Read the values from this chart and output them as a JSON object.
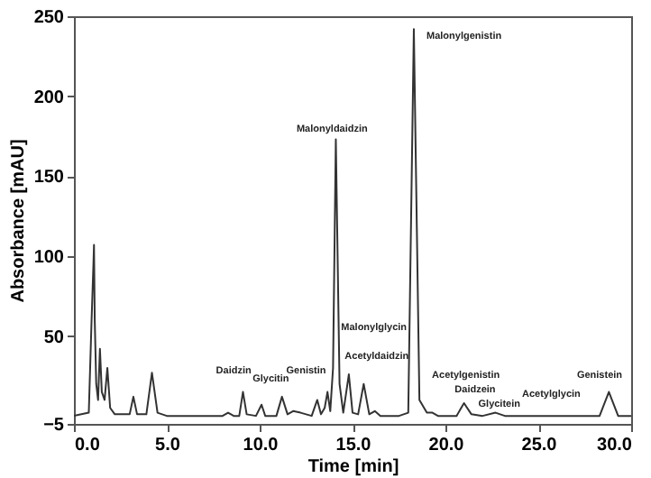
{
  "chart_data": {
    "type": "line",
    "xlabel": "Time [min]",
    "ylabel": "Absorbance [mAU]",
    "x": [
      0,
      0.8,
      0.95,
      1.05,
      1.08,
      1.12,
      1.2,
      1.3,
      1.4,
      1.5,
      1.65,
      1.8,
      1.95,
      2.2,
      3.0,
      3.2,
      3.4,
      3.9,
      4.2,
      4.5,
      5.0,
      8.0,
      8.3,
      8.6,
      8.9,
      9.1,
      9.3,
      9.8,
      10.1,
      10.3,
      10.9,
      11.2,
      11.5,
      11.8,
      12.2,
      12.8,
      13.1,
      13.3,
      13.5,
      13.65,
      13.8,
      13.95,
      14.1,
      14.3,
      14.5,
      14.8,
      15.0,
      15.3,
      15.6,
      15.9,
      16.2,
      16.5,
      17.5,
      18.0,
      18.3,
      18.6,
      19.0,
      19.3,
      19.6,
      20.6,
      21.0,
      21.4,
      22.0,
      22.7,
      23.2,
      25,
      28.3,
      28.8,
      29.3,
      30
    ],
    "series": [
      {
        "color": "#333333",
        "values": [
          0,
          2,
          60,
          95,
          107,
          60,
          20,
          10,
          42,
          15,
          10,
          30,
          5,
          1,
          1,
          12,
          1,
          1,
          27,
          2,
          0,
          0,
          2,
          0,
          0,
          15,
          1,
          0,
          7,
          0,
          0,
          12,
          1,
          3,
          2,
          0,
          10,
          1,
          5,
          15,
          3,
          30,
          173,
          20,
          2,
          26,
          2,
          1,
          20,
          1,
          3,
          0,
          0,
          2,
          242,
          10,
          2,
          2,
          0,
          0,
          8,
          1,
          0,
          2,
          0,
          0,
          0,
          15,
          0,
          0
        ]
      }
    ],
    "annotations": [
      "Daidzin",
      "Glycitin",
      "Genistin",
      "Malonyldaidzin",
      "Malonylgenistin",
      "Malonylglycin",
      "Acetyldaidzin",
      "Acetylgenistin",
      "Daidzein",
      "Glycitein",
      "Acetylglycin",
      "Genistein"
    ],
    "xlim": [
      0,
      30
    ],
    "xticks": [
      {
        "value": 0,
        "label": "0.0"
      },
      {
        "value": 5,
        "label": "5.0"
      },
      {
        "value": 10,
        "label": "10.0"
      },
      {
        "value": 15,
        "label": "15.0"
      },
      {
        "value": 20,
        "label": "20.0"
      },
      {
        "value": 25,
        "label": "25.0"
      },
      {
        "value": 30,
        "label": "30.0"
      }
    ],
    "ylim": [
      -5,
      250
    ],
    "yticks": [
      -5,
      50,
      100,
      150,
      200,
      250
    ],
    "grid": false,
    "marker": "none",
    "line_style": "solid"
  }
}
